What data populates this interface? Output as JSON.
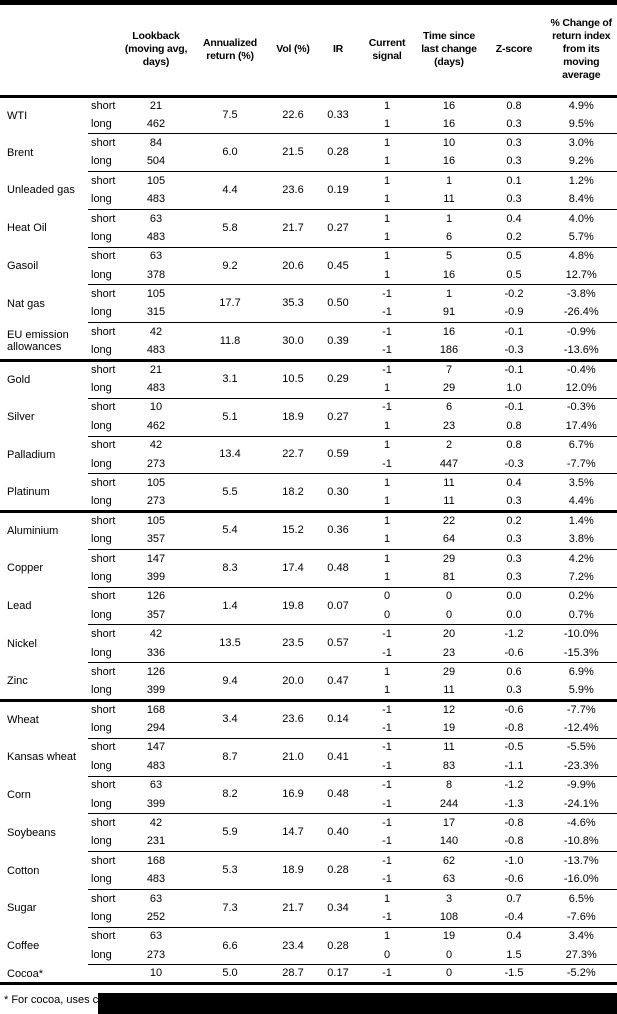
{
  "table": {
    "columns": [
      "Lookback (moving avg, days)",
      "Annualized return (%)",
      "Vol (%)",
      "IR",
      "Current signal",
      "Time since last change (days)",
      "Z-score",
      "% Change of return index from its moving average"
    ],
    "groups": [
      {
        "commodities": [
          {
            "name": "WTI",
            "annualized_return": "7.5",
            "vol": "22.6",
            "ir": "0.33",
            "rows": [
              {
                "side": "short",
                "lookback": "21",
                "signal": "1",
                "time_since": "16",
                "z_score": "0.8",
                "pct_change": "4.9%"
              },
              {
                "side": "long",
                "lookback": "462",
                "signal": "1",
                "time_since": "16",
                "z_score": "0.3",
                "pct_change": "9.5%"
              }
            ]
          },
          {
            "name": "Brent",
            "annualized_return": "6.0",
            "vol": "21.5",
            "ir": "0.28",
            "rows": [
              {
                "side": "short",
                "lookback": "84",
                "signal": "1",
                "time_since": "10",
                "z_score": "0.3",
                "pct_change": "3.0%"
              },
              {
                "side": "long",
                "lookback": "504",
                "signal": "1",
                "time_since": "16",
                "z_score": "0.3",
                "pct_change": "9.2%"
              }
            ]
          },
          {
            "name": "Unleaded gas",
            "annualized_return": "4.4",
            "vol": "23.6",
            "ir": "0.19",
            "rows": [
              {
                "side": "short",
                "lookback": "105",
                "signal": "1",
                "time_since": "1",
                "z_score": "0.1",
                "pct_change": "1.2%"
              },
              {
                "side": "long",
                "lookback": "483",
                "signal": "1",
                "time_since": "11",
                "z_score": "0.3",
                "pct_change": "8.4%"
              }
            ]
          },
          {
            "name": "Heat Oil",
            "annualized_return": "5.8",
            "vol": "21.7",
            "ir": "0.27",
            "rows": [
              {
                "side": "short",
                "lookback": "63",
                "signal": "1",
                "time_since": "1",
                "z_score": "0.4",
                "pct_change": "4.0%"
              },
              {
                "side": "long",
                "lookback": "483",
                "signal": "1",
                "time_since": "6",
                "z_score": "0.2",
                "pct_change": "5.7%"
              }
            ]
          },
          {
            "name": "Gasoil",
            "annualized_return": "9.2",
            "vol": "20.6",
            "ir": "0.45",
            "rows": [
              {
                "side": "short",
                "lookback": "63",
                "signal": "1",
                "time_since": "5",
                "z_score": "0.5",
                "pct_change": "4.8%"
              },
              {
                "side": "long",
                "lookback": "378",
                "signal": "1",
                "time_since": "16",
                "z_score": "0.5",
                "pct_change": "12.7%"
              }
            ]
          },
          {
            "name": "Nat gas",
            "annualized_return": "17.7",
            "vol": "35.3",
            "ir": "0.50",
            "rows": [
              {
                "side": "short",
                "lookback": "105",
                "signal": "-1",
                "time_since": "1",
                "z_score": "-0.2",
                "pct_change": "-3.8%"
              },
              {
                "side": "long",
                "lookback": "315",
                "signal": "-1",
                "time_since": "91",
                "z_score": "-0.9",
                "pct_change": "-26.4%"
              }
            ]
          },
          {
            "name": "EU emission allowances",
            "annualized_return": "11.8",
            "vol": "30.0",
            "ir": "0.39",
            "rows": [
              {
                "side": "short",
                "lookback": "42",
                "signal": "-1",
                "time_since": "16",
                "z_score": "-0.1",
                "pct_change": "-0.9%"
              },
              {
                "side": "long",
                "lookback": "483",
                "signal": "-1",
                "time_since": "186",
                "z_score": "-0.3",
                "pct_change": "-13.6%"
              }
            ]
          }
        ]
      },
      {
        "commodities": [
          {
            "name": "Gold",
            "annualized_return": "3.1",
            "vol": "10.5",
            "ir": "0.29",
            "rows": [
              {
                "side": "short",
                "lookback": "21",
                "signal": "-1",
                "time_since": "7",
                "z_score": "-0.1",
                "pct_change": "-0.4%"
              },
              {
                "side": "long",
                "lookback": "483",
                "signal": "1",
                "time_since": "29",
                "z_score": "1.0",
                "pct_change": "12.0%"
              }
            ]
          },
          {
            "name": "Silver",
            "annualized_return": "5.1",
            "vol": "18.9",
            "ir": "0.27",
            "rows": [
              {
                "side": "short",
                "lookback": "10",
                "signal": "-1",
                "time_since": "6",
                "z_score": "-0.1",
                "pct_change": "-0.3%"
              },
              {
                "side": "long",
                "lookback": "462",
                "signal": "1",
                "time_since": "23",
                "z_score": "0.8",
                "pct_change": "17.4%"
              }
            ]
          },
          {
            "name": "Palladium",
            "annualized_return": "13.4",
            "vol": "22.7",
            "ir": "0.59",
            "rows": [
              {
                "side": "short",
                "lookback": "42",
                "signal": "1",
                "time_since": "2",
                "z_score": "0.8",
                "pct_change": "6.7%"
              },
              {
                "side": "long",
                "lookback": "273",
                "signal": "-1",
                "time_since": "447",
                "z_score": "-0.3",
                "pct_change": "-7.7%"
              }
            ]
          },
          {
            "name": "Platinum",
            "annualized_return": "5.5",
            "vol": "18.2",
            "ir": "0.30",
            "rows": [
              {
                "side": "short",
                "lookback": "105",
                "signal": "1",
                "time_since": "11",
                "z_score": "0.4",
                "pct_change": "3.5%"
              },
              {
                "side": "long",
                "lookback": "273",
                "signal": "1",
                "time_since": "11",
                "z_score": "0.3",
                "pct_change": "4.4%"
              }
            ]
          }
        ]
      },
      {
        "commodities": [
          {
            "name": "Aluminium",
            "annualized_return": "5.4",
            "vol": "15.2",
            "ir": "0.36",
            "rows": [
              {
                "side": "short",
                "lookback": "105",
                "signal": "1",
                "time_since": "22",
                "z_score": "0.2",
                "pct_change": "1.4%"
              },
              {
                "side": "long",
                "lookback": "357",
                "signal": "1",
                "time_since": "64",
                "z_score": "0.3",
                "pct_change": "3.8%"
              }
            ]
          },
          {
            "name": "Copper",
            "annualized_return": "8.3",
            "vol": "17.4",
            "ir": "0.48",
            "rows": [
              {
                "side": "short",
                "lookback": "147",
                "signal": "1",
                "time_since": "29",
                "z_score": "0.3",
                "pct_change": "4.2%"
              },
              {
                "side": "long",
                "lookback": "399",
                "signal": "1",
                "time_since": "81",
                "z_score": "0.3",
                "pct_change": "7.2%"
              }
            ]
          },
          {
            "name": "Lead",
            "annualized_return": "1.4",
            "vol": "19.8",
            "ir": "0.07",
            "rows": [
              {
                "side": "short",
                "lookback": "126",
                "signal": "0",
                "time_since": "0",
                "z_score": "0.0",
                "pct_change": "0.2%"
              },
              {
                "side": "long",
                "lookback": "357",
                "signal": "0",
                "time_since": "0",
                "z_score": "0.0",
                "pct_change": "0.7%"
              }
            ]
          },
          {
            "name": "Nickel",
            "annualized_return": "13.5",
            "vol": "23.5",
            "ir": "0.57",
            "rows": [
              {
                "side": "short",
                "lookback": "42",
                "signal": "-1",
                "time_since": "20",
                "z_score": "-1.2",
                "pct_change": "-10.0%"
              },
              {
                "side": "long",
                "lookback": "336",
                "signal": "-1",
                "time_since": "23",
                "z_score": "-0.6",
                "pct_change": "-15.3%"
              }
            ]
          },
          {
            "name": "Zinc",
            "annualized_return": "9.4",
            "vol": "20.0",
            "ir": "0.47",
            "rows": [
              {
                "side": "short",
                "lookback": "126",
                "signal": "1",
                "time_since": "29",
                "z_score": "0.6",
                "pct_change": "6.9%"
              },
              {
                "side": "long",
                "lookback": "399",
                "signal": "1",
                "time_since": "11",
                "z_score": "0.3",
                "pct_change": "5.9%"
              }
            ]
          }
        ]
      },
      {
        "commodities": [
          {
            "name": "Wheat",
            "annualized_return": "3.4",
            "vol": "23.6",
            "ir": "0.14",
            "rows": [
              {
                "side": "short",
                "lookback": "168",
                "signal": "-1",
                "time_since": "12",
                "z_score": "-0.6",
                "pct_change": "-7.7%"
              },
              {
                "side": "long",
                "lookback": "294",
                "signal": "-1",
                "time_since": "19",
                "z_score": "-0.8",
                "pct_change": "-12.4%"
              }
            ]
          },
          {
            "name": "Kansas wheat",
            "annualized_return": "8.7",
            "vol": "21.0",
            "ir": "0.41",
            "rows": [
              {
                "side": "short",
                "lookback": "147",
                "signal": "-1",
                "time_since": "11",
                "z_score": "-0.5",
                "pct_change": "-5.5%"
              },
              {
                "side": "long",
                "lookback": "483",
                "signal": "-1",
                "time_since": "83",
                "z_score": "-1.1",
                "pct_change": "-23.3%"
              }
            ]
          },
          {
            "name": "Corn",
            "annualized_return": "8.2",
            "vol": "16.9",
            "ir": "0.48",
            "rows": [
              {
                "side": "short",
                "lookback": "63",
                "signal": "-1",
                "time_since": "8",
                "z_score": "-1.2",
                "pct_change": "-9.9%"
              },
              {
                "side": "long",
                "lookback": "399",
                "signal": "-1",
                "time_since": "244",
                "z_score": "-1.3",
                "pct_change": "-24.1%"
              }
            ]
          },
          {
            "name": "Soybeans",
            "annualized_return": "5.9",
            "vol": "14.7",
            "ir": "0.40",
            "rows": [
              {
                "side": "short",
                "lookback": "42",
                "signal": "-1",
                "time_since": "17",
                "z_score": "-0.8",
                "pct_change": "-4.6%"
              },
              {
                "side": "long",
                "lookback": "231",
                "signal": "-1",
                "time_since": "140",
                "z_score": "-0.8",
                "pct_change": "-10.8%"
              }
            ]
          },
          {
            "name": "Cotton",
            "annualized_return": "5.3",
            "vol": "18.9",
            "ir": "0.28",
            "rows": [
              {
                "side": "short",
                "lookback": "168",
                "signal": "-1",
                "time_since": "62",
                "z_score": "-1.0",
                "pct_change": "-13.7%"
              },
              {
                "side": "long",
                "lookback": "483",
                "signal": "-1",
                "time_since": "63",
                "z_score": "-0.6",
                "pct_change": "-16.0%"
              }
            ]
          },
          {
            "name": "Sugar",
            "annualized_return": "7.3",
            "vol": "21.7",
            "ir": "0.34",
            "rows": [
              {
                "side": "short",
                "lookback": "63",
                "signal": "1",
                "time_since": "3",
                "z_score": "0.7",
                "pct_change": "6.5%"
              },
              {
                "side": "long",
                "lookback": "252",
                "signal": "-1",
                "time_since": "108",
                "z_score": "-0.4",
                "pct_change": "-7.6%"
              }
            ]
          },
          {
            "name": "Coffee",
            "annualized_return": "6.6",
            "vol": "23.4",
            "ir": "0.28",
            "rows": [
              {
                "side": "short",
                "lookback": "63",
                "signal": "1",
                "time_since": "19",
                "z_score": "0.4",
                "pct_change": "3.4%"
              },
              {
                "side": "long",
                "lookback": "273",
                "signal": "0",
                "time_since": "0",
                "z_score": "1.5",
                "pct_change": "27.3%"
              }
            ]
          },
          {
            "name": "Cocoa*",
            "annualized_return": "5.0",
            "vol": "28.7",
            "ir": "0.17",
            "rows": [
              {
                "side": "",
                "lookback": "10",
                "signal": "-1",
                "time_since": "0",
                "z_score": "-1.5",
                "pct_change": "-5.2%"
              }
            ]
          }
        ]
      }
    ]
  },
  "footnote": {
    "text": "* For cocoa, uses c"
  },
  "colors": {
    "ink": "#000000",
    "paper": "#ffffff"
  }
}
